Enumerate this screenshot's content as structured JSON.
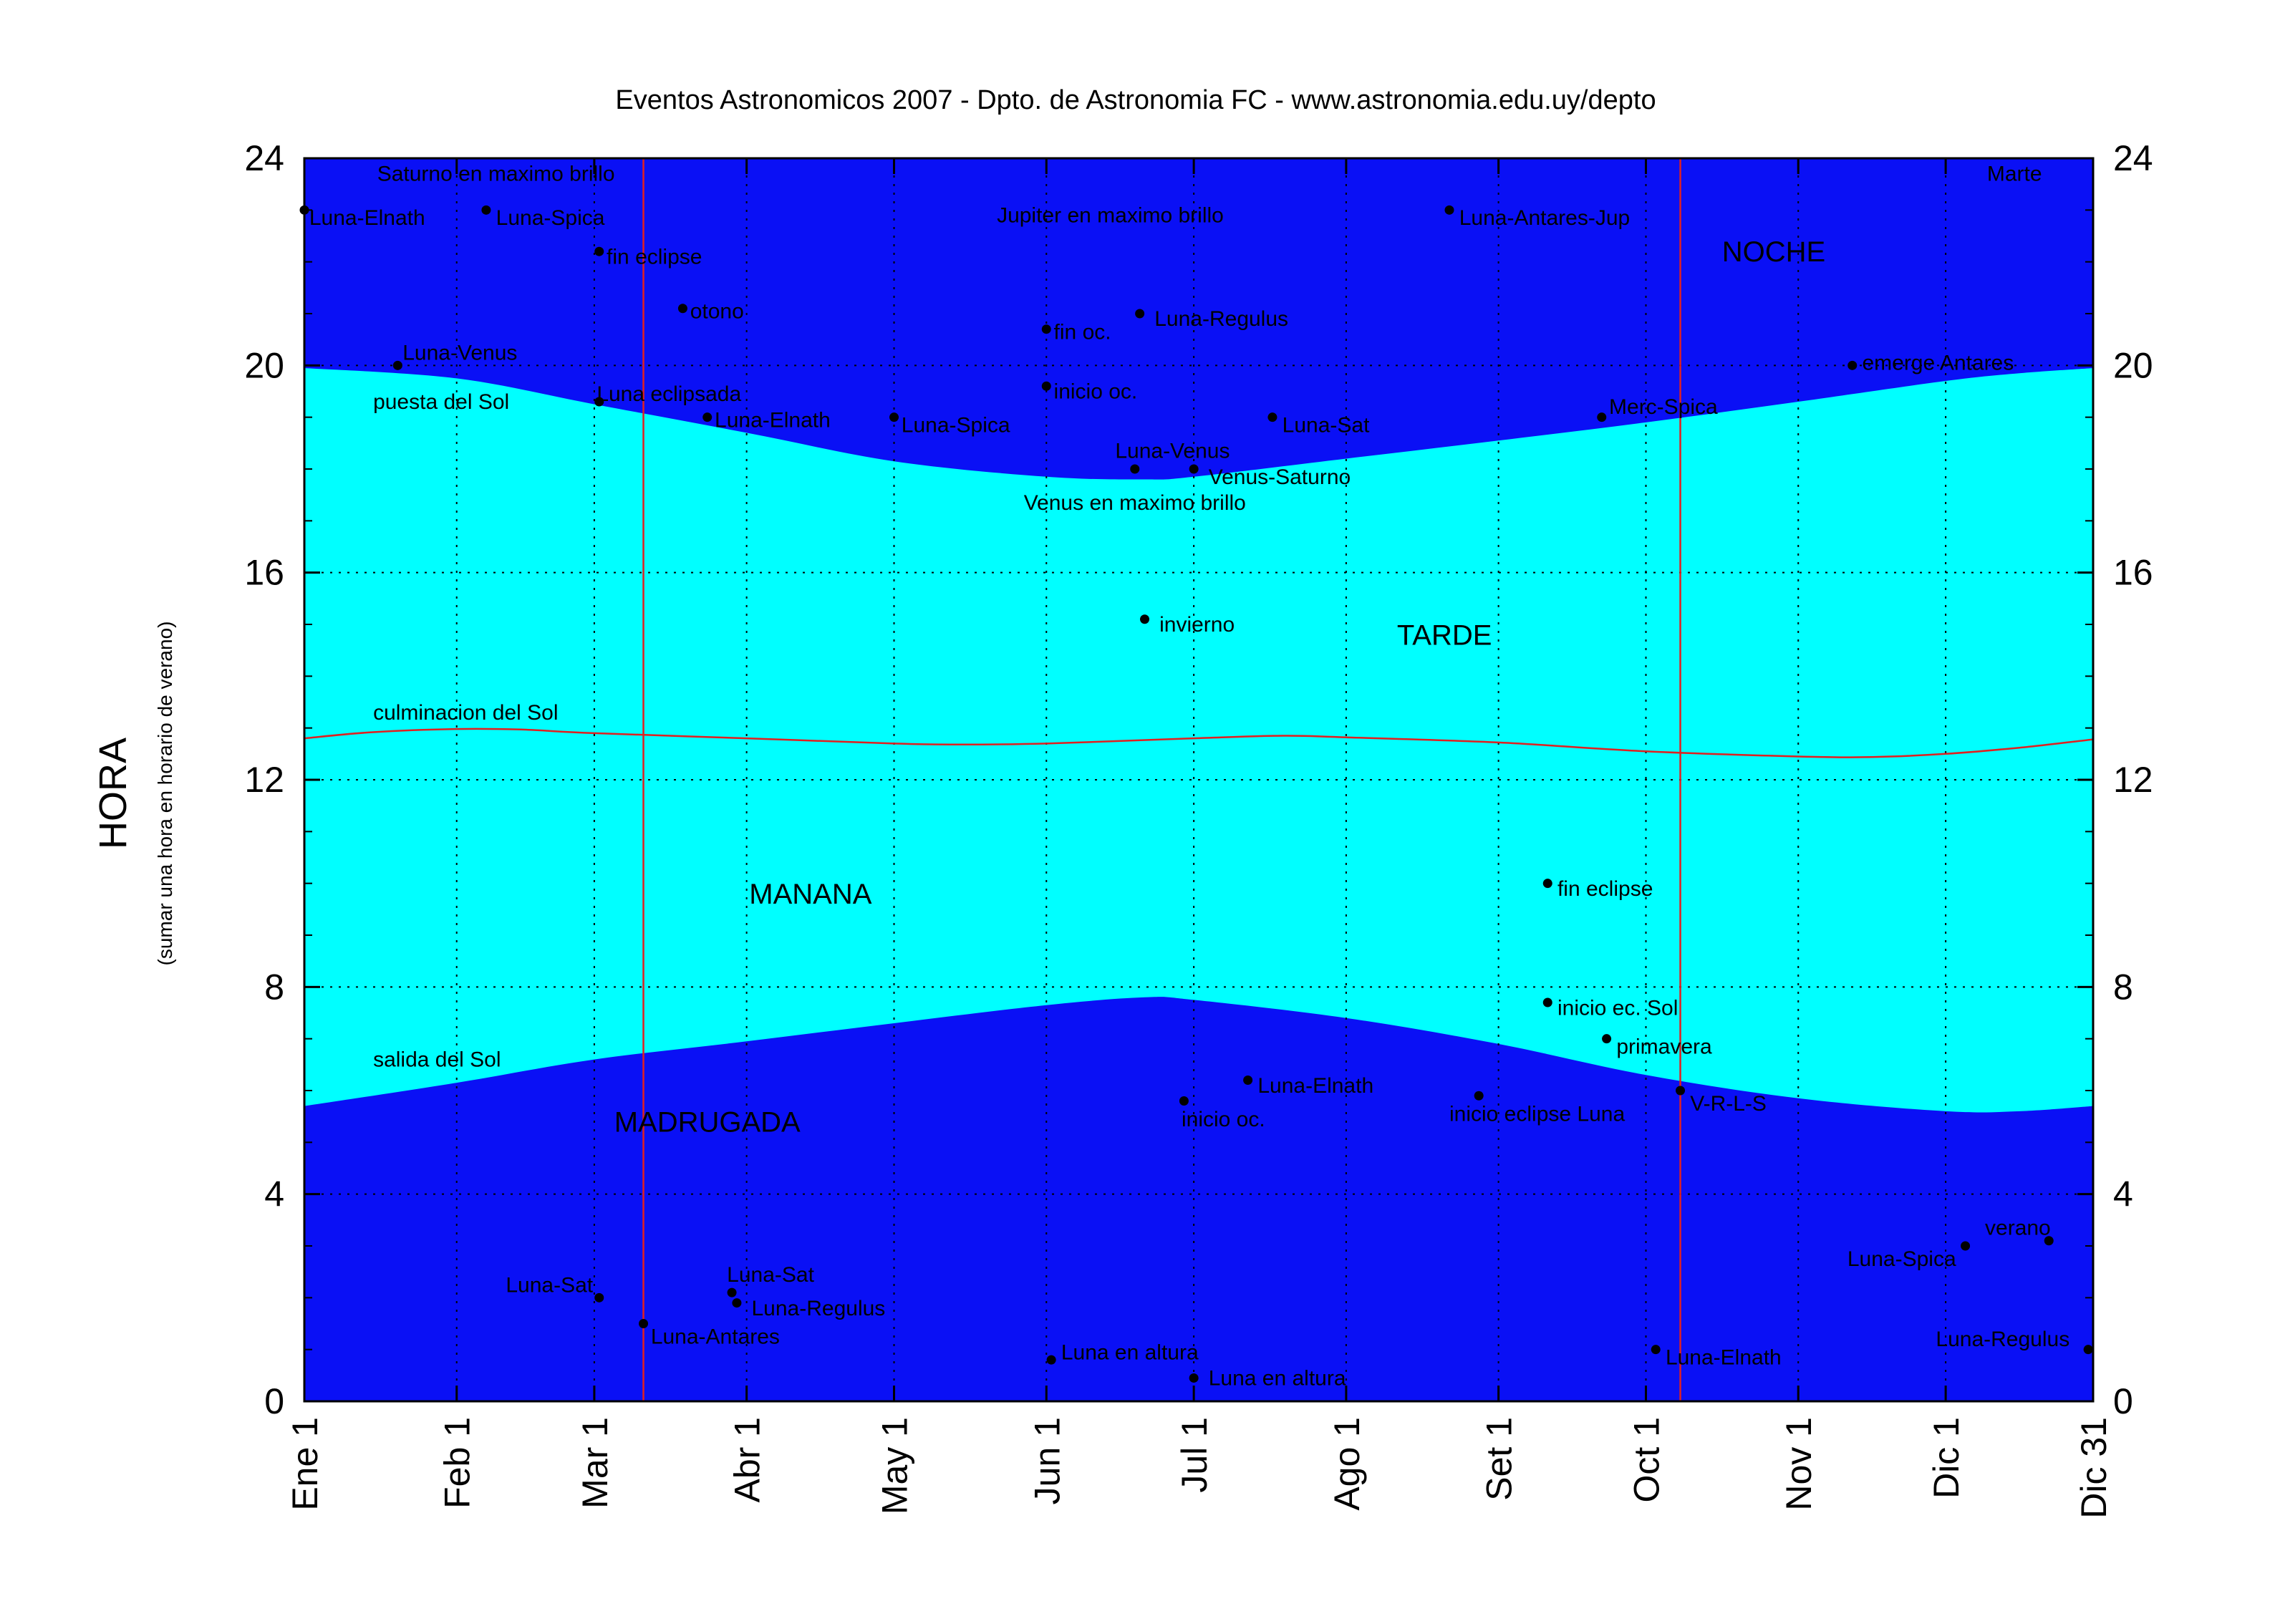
{
  "chart_data": {
    "type": "scatter",
    "title": "Eventos Astronomicos 2007 - Dpto. de Astronomia FC - www.astronomia.edu.uy/depto",
    "ylabel": "HORA",
    "ylabel_sub": "(sumar una hora en horario de verano)",
    "xlim": [
      1,
      365
    ],
    "ylim": [
      0,
      24
    ],
    "yticks": [
      0,
      4,
      8,
      12,
      16,
      20,
      24
    ],
    "grid": true,
    "x_ticks": [
      {
        "label": "Ene 1",
        "day": 1
      },
      {
        "label": "Feb 1",
        "day": 32
      },
      {
        "label": "Mar 1",
        "day": 60
      },
      {
        "label": "Abr 1",
        "day": 91
      },
      {
        "label": "May 1",
        "day": 121
      },
      {
        "label": "Jun 1",
        "day": 152
      },
      {
        "label": "Jul 1",
        "day": 182
      },
      {
        "label": "Ago 1",
        "day": 213
      },
      {
        "label": "Set 1",
        "day": 244
      },
      {
        "label": "Oct 1",
        "day": 274
      },
      {
        "label": "Nov 1",
        "day": 305
      },
      {
        "label": "Dic 1",
        "day": 335
      },
      {
        "label": "Dic 31",
        "day": 365
      }
    ],
    "colors": {
      "night": "#0a10f5",
      "day": "#00ffff",
      "sun_line": "#e02020",
      "vline": "#e02020",
      "point": "#000000"
    },
    "vertical_lines": [
      {
        "day": 70
      },
      {
        "day": 281
      }
    ],
    "sunrise": {
      "day": [
        1,
        32,
        60,
        91,
        121,
        152,
        172,
        182,
        213,
        244,
        274,
        305,
        335,
        350,
        365
      ],
      "hour": [
        5.7,
        6.15,
        6.6,
        6.95,
        7.3,
        7.65,
        7.8,
        7.75,
        7.4,
        6.9,
        6.3,
        5.85,
        5.6,
        5.6,
        5.7
      ]
    },
    "sunset": {
      "day": [
        1,
        32,
        60,
        91,
        121,
        152,
        172,
        182,
        213,
        244,
        274,
        305,
        335,
        350,
        365
      ],
      "hour": [
        19.95,
        19.75,
        19.25,
        18.7,
        18.15,
        17.85,
        17.8,
        17.85,
        18.2,
        18.55,
        18.9,
        19.3,
        19.7,
        19.85,
        19.95
      ]
    },
    "culmination": {
      "day": [
        1,
        15,
        32,
        45,
        60,
        91,
        121,
        135,
        152,
        182,
        200,
        213,
        244,
        274,
        305,
        320,
        335,
        350,
        365
      ],
      "hour": [
        12.8,
        12.92,
        12.98,
        12.97,
        12.9,
        12.8,
        12.7,
        12.68,
        12.7,
        12.8,
        12.85,
        12.82,
        12.72,
        12.55,
        12.45,
        12.44,
        12.5,
        12.62,
        12.78
      ]
    },
    "region_labels": [
      {
        "text": "NOCHE",
        "day": 300,
        "hour": 22.2
      },
      {
        "text": "TARDE",
        "day": 233,
        "hour": 14.8
      },
      {
        "text": "MANANA",
        "day": 104,
        "hour": 9.8
      },
      {
        "text": "MADRUGADA",
        "day": 83,
        "hour": 5.4
      }
    ],
    "line_labels": [
      {
        "text": "puesta del Sol",
        "day": 15,
        "hour": 19.3
      },
      {
        "text": "culminacion del Sol",
        "day": 15,
        "hour": 13.3
      },
      {
        "text": "salida del Sol",
        "day": 15,
        "hour": 6.6
      }
    ],
    "events": [
      {
        "label": "Luna-Elnath",
        "day": 1,
        "hour": 23.0,
        "lx": 1,
        "ly": -0.15
      },
      {
        "label": "Saturno en maximo brillo",
        "day": 40,
        "hour": 23.7,
        "point": false
      },
      {
        "label": "Luna-Spica",
        "day": 38,
        "hour": 23.0,
        "lx": 2,
        "ly": -0.15
      },
      {
        "label": "fin eclipse",
        "day": 61,
        "hour": 22.2,
        "lx": 1.5,
        "ly": -0.1
      },
      {
        "label": "otono",
        "day": 78,
        "hour": 21.1,
        "lx": 1.5,
        "ly": -0.05
      },
      {
        "label": "Luna-Venus",
        "day": 20,
        "hour": 20.0,
        "lx": 1,
        "ly": 0.25
      },
      {
        "label": "Luna eclipsada",
        "day": 61,
        "hour": 19.3,
        "lx": -0.5,
        "ly": 0.15
      },
      {
        "label": "Luna-Elnath",
        "day": 83,
        "hour": 19.0,
        "lx": 1.5,
        "ly": -0.05
      },
      {
        "label": "Luna-Spica",
        "day": 121,
        "hour": 19.0,
        "lx": 1.5,
        "ly": -0.15
      },
      {
        "label": "Jupiter en maximo brillo",
        "day": 165,
        "hour": 22.9,
        "point": false
      },
      {
        "label": "fin oc.",
        "day": 152,
        "hour": 20.7,
        "lx": 1.5,
        "ly": -0.05
      },
      {
        "label": "inicio oc.",
        "day": 152,
        "hour": 19.6,
        "lx": 1.5,
        "ly": -0.1
      },
      {
        "label": "Luna-Regulus",
        "day": 171,
        "hour": 21.0,
        "lx": 3,
        "ly": -0.1
      },
      {
        "label": "Luna-Venus",
        "day": 170,
        "hour": 18.0,
        "lx": -4,
        "ly": 0.35
      },
      {
        "label": "Venus-Saturno",
        "day": 182,
        "hour": 18.0,
        "lx": 3,
        "ly": -0.15
      },
      {
        "label": "Venus en maximo brillo",
        "day": 170,
        "hour": 17.35,
        "point": false
      },
      {
        "label": "Luna-Sat",
        "day": 198,
        "hour": 19.0,
        "lx": 2,
        "ly": -0.15
      },
      {
        "label": "Luna-Antares-Jup",
        "day": 234,
        "hour": 23.0,
        "lx": 2,
        "ly": -0.15
      },
      {
        "label": "Merc-Spica",
        "day": 265,
        "hour": 19.0,
        "lx": 1.5,
        "ly": 0.2
      },
      {
        "label": "emerge Antares",
        "day": 316,
        "hour": 20.0,
        "lx": 2,
        "ly": 0.05
      },
      {
        "label": "Marte",
        "day": 349,
        "hour": 23.7,
        "point": false
      },
      {
        "label": "invierno",
        "day": 172,
        "hour": 15.1,
        "lx": 3,
        "ly": -0.1
      },
      {
        "label": "fin eclipse",
        "day": 254,
        "hour": 10.0,
        "lx": 2,
        "ly": -0.1
      },
      {
        "label": "inicio ec. Sol",
        "day": 254,
        "hour": 7.7,
        "lx": 2,
        "ly": -0.1
      },
      {
        "label": "primavera",
        "day": 266,
        "hour": 7.0,
        "lx": 2,
        "ly": -0.15
      },
      {
        "label": "V-R-L-S",
        "day": 281,
        "hour": 6.0,
        "lx": 2,
        "ly": -0.25
      },
      {
        "label": "inicio eclipse Luna",
        "day": 240,
        "hour": 5.9,
        "lx": -6,
        "ly": -0.35
      },
      {
        "label": "inicio oc.",
        "day": 180,
        "hour": 5.8,
        "lx": -0.5,
        "ly": -0.35
      },
      {
        "label": "Luna-Elnath",
        "day": 193,
        "hour": 6.2,
        "lx": 2,
        "ly": -0.1
      },
      {
        "label": "Luna-Sat",
        "day": 61,
        "hour": 2.0,
        "lx": -19,
        "ly": 0.25
      },
      {
        "label": "Luna-Antares",
        "day": 70,
        "hour": 1.5,
        "lx": 1.5,
        "ly": -0.25
      },
      {
        "label": "Luna-Sat",
        "day": 88,
        "hour": 2.1,
        "lx": -1,
        "ly": 0.35
      },
      {
        "label": "Luna-Regulus",
        "day": 89,
        "hour": 1.9,
        "lx": 3,
        "ly": -0.1
      },
      {
        "label": "Luna en altura",
        "day": 153,
        "hour": 0.8,
        "lx": 2,
        "ly": 0.15
      },
      {
        "label": "Luna en altura",
        "day": 182,
        "hour": 0.45,
        "lx": 3,
        "ly": 0.0
      },
      {
        "label": "Luna-Elnath",
        "day": 276,
        "hour": 1.0,
        "lx": 2,
        "ly": -0.15
      },
      {
        "label": "Luna-Spica",
        "day": 339,
        "hour": 3.0,
        "lx": -24,
        "ly": -0.25
      },
      {
        "label": "verano",
        "day": 356,
        "hour": 3.1,
        "lx": -13,
        "ly": 0.25
      },
      {
        "label": "Luna-Regulus",
        "day": 364,
        "hour": 1.0,
        "lx": -31,
        "ly": 0.2
      }
    ]
  }
}
